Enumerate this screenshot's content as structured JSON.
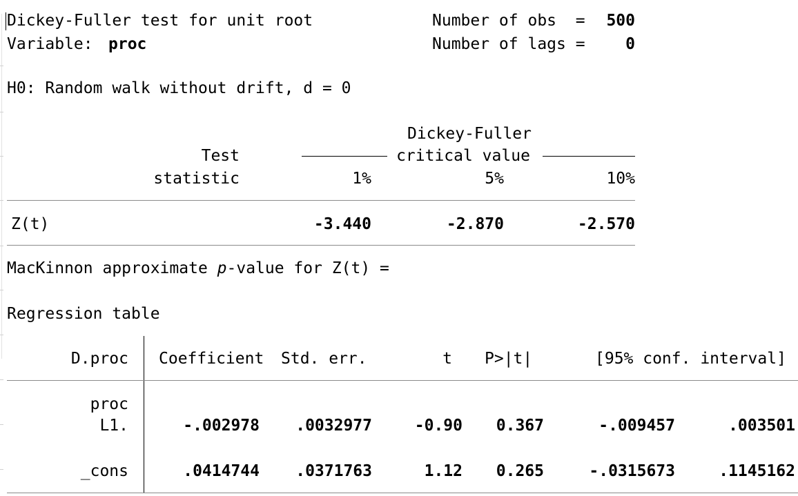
{
  "header": {
    "title": "Dickey-Fuller test for unit root",
    "variable_label": "Variable:",
    "variable_name": "proc",
    "obs_label": "Number of obs  =",
    "obs_value": "500",
    "lags_label": "Number of lags =",
    "lags_value": "0"
  },
  "hypothesis": "H0: Random walk without drift, d = 0",
  "df_table": {
    "group_title": "Dickey-Fuller",
    "group_subtitle": "critical value",
    "col_test_1": "Test",
    "col_test_2": "statistic",
    "col_1pct": "1%",
    "col_5pct": "5%",
    "col_10pct": "10%",
    "row_label": "Z(t)",
    "row_test_statistic": "",
    "row_1pct": "-3.440",
    "row_5pct": "-2.870",
    "row_10pct": "-2.570"
  },
  "mackinnon": {
    "prefix": "MacKinnon approximate ",
    "p": "p",
    "suffix": "-value for Z(t) =",
    "value": ""
  },
  "regression": {
    "title": "Regression table",
    "headers": {
      "depvar": "D.proc",
      "coef": "Coefficient",
      "se": "Std. err.",
      "t": "t",
      "p": "P>|t|",
      "ci": "[95% conf. interval]"
    },
    "group_label": "proc",
    "rows": [
      {
        "label": "L1.",
        "coef": "-.002978",
        "se": ".0032977",
        "t": "-0.90",
        "p": "0.367",
        "ci_low": "-.009457",
        "ci_high": ".003501"
      },
      {
        "label": "_cons",
        "coef": ".0414744",
        "se": ".0371763",
        "t": "1.12",
        "p": "0.265",
        "ci_low": "-.0315673",
        "ci_high": ".1145162"
      }
    ]
  }
}
